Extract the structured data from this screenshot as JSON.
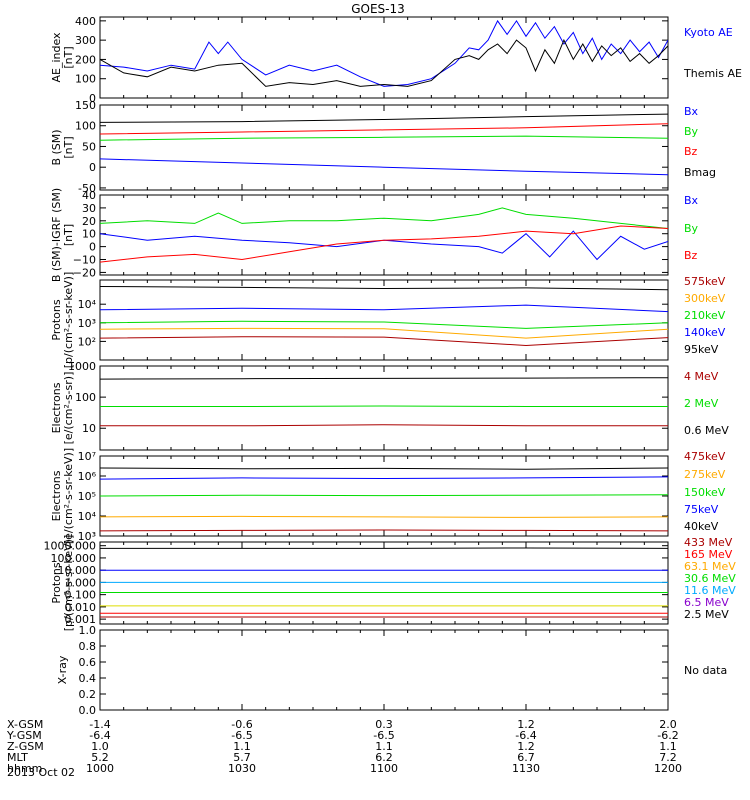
{
  "title": "GOES-13",
  "date_label": "2013 Oct 02",
  "colors": {
    "black": "#000000",
    "blue": "#0000ff",
    "red": "#ff0000",
    "green": "#00dd00",
    "orange": "#ffaa00",
    "darkred": "#aa0000",
    "cyan": "#00aaff",
    "yellow": "#dddd00",
    "purple": "#8800cc"
  },
  "chart_data": [
    {
      "id": "ae",
      "type": "line",
      "ylabel": "AE_index\n[nT]",
      "yscale": "linear",
      "ylim": [
        0,
        420
      ],
      "yticks": [
        "0",
        "100",
        "200",
        "300",
        "400"
      ],
      "ytick_values": [
        0,
        100,
        200,
        300,
        400
      ],
      "series": [
        {
          "name": "Kyoto AE",
          "color": "blue",
          "x": [
            1000,
            1005,
            1010,
            1015,
            1020,
            1023,
            1025,
            1027,
            1030,
            1035,
            1040,
            1045,
            1050,
            1055,
            1100,
            1105,
            1110,
            1115,
            1118,
            1120,
            1122,
            1124,
            1126,
            1128,
            1130,
            1132,
            1134,
            1136,
            1138,
            1140,
            1142,
            1144,
            1146,
            1148,
            1150,
            1152,
            1154,
            1156,
            1158,
            1200
          ],
          "y": [
            170,
            160,
            140,
            170,
            150,
            290,
            230,
            290,
            200,
            120,
            170,
            140,
            170,
            110,
            60,
            70,
            100,
            180,
            260,
            250,
            300,
            400,
            330,
            400,
            320,
            390,
            310,
            370,
            280,
            340,
            230,
            310,
            200,
            280,
            230,
            300,
            240,
            290,
            210,
            300
          ]
        },
        {
          "name": "Themis AE",
          "color": "black",
          "x": [
            1000,
            1005,
            1010,
            1015,
            1020,
            1025,
            1030,
            1035,
            1040,
            1045,
            1050,
            1055,
            1100,
            1105,
            1110,
            1115,
            1118,
            1120,
            1122,
            1124,
            1126,
            1128,
            1130,
            1132,
            1134,
            1136,
            1138,
            1140,
            1142,
            1144,
            1146,
            1148,
            1150,
            1152,
            1154,
            1156,
            1158,
            1200
          ],
          "y": [
            200,
            130,
            110,
            160,
            140,
            170,
            180,
            60,
            80,
            70,
            90,
            60,
            70,
            60,
            90,
            200,
            220,
            200,
            250,
            280,
            230,
            300,
            260,
            140,
            250,
            180,
            300,
            200,
            280,
            190,
            270,
            220,
            260,
            190,
            230,
            180,
            220,
            270
          ]
        }
      ],
      "legend": [
        "Kyoto AE",
        "Themis AE"
      ]
    },
    {
      "id": "bsm",
      "type": "line",
      "ylabel": "B (SM)\n[nT]",
      "yscale": "linear",
      "ylim": [
        -55,
        150
      ],
      "yticks": [
        "-50",
        "0",
        "50",
        "100",
        "150"
      ],
      "ytick_values": [
        -50,
        0,
        50,
        100,
        150
      ],
      "series": [
        {
          "name": "Bx",
          "color": "blue",
          "x": [
            1000,
            1030,
            1100,
            1130,
            1200
          ],
          "y": [
            20,
            10,
            0,
            -10,
            -18
          ]
        },
        {
          "name": "By",
          "color": "green",
          "x": [
            1000,
            1030,
            1100,
            1130,
            1200
          ],
          "y": [
            65,
            70,
            72,
            75,
            70
          ]
        },
        {
          "name": "Bz",
          "color": "red",
          "x": [
            1000,
            1030,
            1100,
            1130,
            1200
          ],
          "y": [
            80,
            85,
            90,
            95,
            105
          ]
        },
        {
          "name": "Bmag",
          "color": "black",
          "x": [
            1000,
            1030,
            1100,
            1130,
            1200
          ],
          "y": [
            108,
            110,
            115,
            122,
            128
          ]
        }
      ],
      "legend": [
        "Bx",
        "By",
        "Bz",
        "Bmag"
      ]
    },
    {
      "id": "bigrf",
      "type": "line",
      "ylabel": "B (SM)-IGRF (SM)\n[nT]",
      "yscale": "linear",
      "ylim": [
        -22,
        40
      ],
      "yticks": [
        "−20",
        "−10",
        "0",
        "10",
        "20",
        "30",
        "40"
      ],
      "ytick_values": [
        -20,
        -10,
        0,
        10,
        20,
        30,
        40
      ],
      "series": [
        {
          "name": "Bx",
          "color": "blue",
          "x": [
            1000,
            1010,
            1020,
            1030,
            1040,
            1050,
            1100,
            1110,
            1120,
            1125,
            1130,
            1135,
            1140,
            1145,
            1150,
            1155,
            1200
          ],
          "y": [
            10,
            5,
            8,
            5,
            3,
            0,
            5,
            2,
            0,
            -5,
            10,
            -8,
            12,
            -10,
            8,
            -2,
            4
          ]
        },
        {
          "name": "By",
          "color": "green",
          "x": [
            1000,
            1010,
            1020,
            1025,
            1030,
            1040,
            1050,
            1100,
            1110,
            1120,
            1125,
            1130,
            1140,
            1150,
            1200
          ],
          "y": [
            18,
            20,
            18,
            26,
            18,
            20,
            20,
            22,
            20,
            25,
            30,
            25,
            22,
            18,
            14
          ]
        },
        {
          "name": "Bz",
          "color": "red",
          "x": [
            1000,
            1010,
            1020,
            1030,
            1040,
            1050,
            1100,
            1110,
            1120,
            1130,
            1140,
            1150,
            1200
          ],
          "y": [
            -12,
            -8,
            -6,
            -10,
            -4,
            2,
            5,
            6,
            8,
            12,
            10,
            16,
            14
          ]
        }
      ],
      "legend": [
        "Bx",
        "By",
        "Bz"
      ]
    },
    {
      "id": "protons_kev",
      "type": "line",
      "ylabel": "Protons\n[p/(cm²-s-sr-keV)]",
      "yscale": "log",
      "ylim": [
        10,
        200000
      ],
      "yticks": [
        "10²",
        "10³",
        "10⁴"
      ],
      "ytick_values": [
        100,
        1000,
        10000
      ],
      "series": [
        {
          "name": "575keV",
          "color": "black",
          "x": [
            1000,
            1030,
            1100,
            1130,
            1200
          ],
          "y": [
            90000,
            80000,
            70000,
            75000,
            60000
          ]
        },
        {
          "name": "300keV",
          "color": "orange",
          "x": [
            1000,
            1030,
            1100,
            1130,
            1200
          ],
          "y": [
            450,
            500,
            480,
            150,
            450
          ]
        },
        {
          "name": "210keV",
          "color": "green",
          "x": [
            1000,
            1030,
            1100,
            1130,
            1200
          ],
          "y": [
            1000,
            1200,
            1100,
            500,
            1000
          ]
        },
        {
          "name": "140keV",
          "color": "blue",
          "x": [
            1000,
            1030,
            1100,
            1130,
            1200
          ],
          "y": [
            5000,
            6000,
            5000,
            9000,
            4000
          ]
        },
        {
          "name": "95keV",
          "color": "darkred",
          "x": [
            1000,
            1030,
            1100,
            1130,
            1200
          ],
          "y": [
            150,
            180,
            170,
            60,
            160
          ]
        }
      ],
      "legend": [
        "575keV",
        "300keV",
        "210keV",
        "140keV",
        "95keV"
      ]
    },
    {
      "id": "electrons_mev",
      "type": "line",
      "ylabel": "Electrons\n[e/(cm²-s-sr)]",
      "yscale": "log",
      "ylim": [
        2,
        1000
      ],
      "yticks": [
        "10",
        "100",
        "1000"
      ],
      "ytick_values": [
        10,
        100,
        1000
      ],
      "series": [
        {
          "name": "4 MeV",
          "color": "darkred",
          "x": [
            1000,
            1030,
            1100,
            1130,
            1200
          ],
          "y": [
            12,
            12,
            13,
            12,
            12
          ]
        },
        {
          "name": "2 MeV",
          "color": "green",
          "x": [
            1000,
            1030,
            1100,
            1130,
            1200
          ],
          "y": [
            50,
            50,
            52,
            50,
            50
          ]
        },
        {
          "name": "0.6 MeV",
          "color": "black",
          "x": [
            1000,
            1030,
            1100,
            1130,
            1200
          ],
          "y": [
            380,
            390,
            400,
            410,
            420
          ]
        }
      ],
      "legend": [
        "4 MeV",
        "2 MeV",
        "0.6 MeV"
      ]
    },
    {
      "id": "electrons_kev",
      "type": "line",
      "ylabel": "Electrons\n[e/(cm²-s-sr-keV)]",
      "yscale": "log",
      "ylim": [
        1000,
        10000000
      ],
      "yticks": [
        "10³",
        "10⁴",
        "10⁵",
        "10⁶",
        "10⁷"
      ],
      "ytick_values": [
        1000,
        10000,
        100000,
        1000000,
        10000000
      ],
      "series": [
        {
          "name": "475keV",
          "color": "darkred",
          "x": [
            1000,
            1030,
            1100,
            1130,
            1200
          ],
          "y": [
            1800,
            1900,
            2000,
            1900,
            1800
          ]
        },
        {
          "name": "275keV",
          "color": "orange",
          "x": [
            1000,
            1030,
            1100,
            1130,
            1200
          ],
          "y": [
            9000,
            9500,
            9000,
            8500,
            9000
          ]
        },
        {
          "name": "150keV",
          "color": "green",
          "x": [
            1000,
            1030,
            1100,
            1130,
            1200
          ],
          "y": [
            100000,
            110000,
            105000,
            110000,
            115000
          ]
        },
        {
          "name": "75keV",
          "color": "blue",
          "x": [
            1000,
            1030,
            1100,
            1130,
            1200
          ],
          "y": [
            700000,
            800000,
            750000,
            800000,
            900000
          ]
        },
        {
          "name": "40keV",
          "color": "black",
          "x": [
            1000,
            1030,
            1100,
            1130,
            1200
          ],
          "y": [
            2500000,
            2300000,
            2400000,
            2200000,
            2500000
          ]
        }
      ],
      "legend": [
        "475keV",
        "275keV",
        "150keV",
        "75keV",
        "40keV"
      ]
    },
    {
      "id": "protons_mev",
      "type": "line",
      "ylabel": "Protons\n[p/(cm²-s-sr-keV)]",
      "yscale": "log",
      "ylim": [
        0.0004,
        2000
      ],
      "yticks": [
        "0.001",
        "0.010",
        "0.100",
        "1.000",
        "10.000",
        "100.000",
        "1000.000"
      ],
      "ytick_values": [
        0.001,
        0.01,
        0.1,
        1,
        10,
        100,
        1000
      ],
      "series": [
        {
          "name": "433 MeV",
          "color": "darkred",
          "x": [
            1000,
            1030,
            1100,
            1130,
            1200
          ],
          "y": [
            0.0015,
            0.0015,
            0.0015,
            0.0015,
            0.0015
          ]
        },
        {
          "name": "165 MeV",
          "color": "red",
          "x": [
            1000,
            1030,
            1100,
            1130,
            1200
          ],
          "y": [
            0.003,
            0.003,
            0.003,
            0.003,
            0.003
          ]
        },
        {
          "name": "63.1 MeV",
          "color": "yellow",
          "x": [
            1000,
            1030,
            1100,
            1130,
            1200
          ],
          "y": [
            0.012,
            0.012,
            0.012,
            0.012,
            0.012
          ]
        },
        {
          "name": "30.6 MeV",
          "color": "green",
          "x": [
            1000,
            1030,
            1100,
            1130,
            1200
          ],
          "y": [
            0.15,
            0.15,
            0.15,
            0.15,
            0.15
          ]
        },
        {
          "name": "11.6 MeV",
          "color": "cyan",
          "x": [
            1000,
            1030,
            1100,
            1130,
            1200
          ],
          "y": [
            1.0,
            1.0,
            1.0,
            1.0,
            1.0
          ]
        },
        {
          "name": "6.5 MeV",
          "color": "blue",
          "x": [
            1000,
            1030,
            1100,
            1130,
            1200
          ],
          "y": [
            10,
            10,
            10,
            10,
            10
          ]
        },
        {
          "name": "2.5 MeV",
          "color": "black",
          "x": [
            1000,
            1030,
            1100,
            1130,
            1200
          ],
          "y": [
            600,
            600,
            600,
            650,
            600
          ]
        }
      ],
      "legend": [
        "433 MeV",
        "165 MeV",
        "63.1 MeV",
        "30.6 MeV",
        "11.6 MeV",
        "6.5 MeV",
        "2.5 MeV"
      ]
    },
    {
      "id": "xray",
      "type": "line",
      "ylabel": "X-ray",
      "yscale": "linear",
      "ylim": [
        0,
        1.0
      ],
      "yticks": [
        "0.0",
        "0.2",
        "0.4",
        "0.6",
        "0.8",
        "1.0"
      ],
      "ytick_values": [
        0,
        0.2,
        0.4,
        0.6,
        0.8,
        1.0
      ],
      "series": [],
      "legend": [],
      "note": "No data"
    }
  ],
  "legend_colors": {
    "ae": [
      "blue",
      "black"
    ],
    "bsm": [
      "blue",
      "green",
      "red",
      "black"
    ],
    "bigrf": [
      "blue",
      "green",
      "red"
    ],
    "protons_kev": [
      "darkred",
      "orange",
      "green",
      "blue",
      "black"
    ],
    "electrons_mev": [
      "darkred",
      "green",
      "black"
    ],
    "electrons_kev": [
      "darkred",
      "orange",
      "green",
      "blue",
      "black"
    ],
    "protons_mev": [
      "darkred",
      "red",
      "orange",
      "green",
      "cyan",
      "purple",
      "black"
    ]
  },
  "x_axis": {
    "range": [
      1000,
      1200
    ],
    "tick_hhmm": [
      1000,
      1030,
      1100,
      1130,
      1200
    ],
    "rows": [
      {
        "label": "X-GSM",
        "values": [
          "-1.4",
          "-0.6",
          "0.3",
          "1.2",
          "2.0"
        ]
      },
      {
        "label": "Y-GSM",
        "values": [
          "-6.4",
          "-6.5",
          "-6.5",
          "-6.4",
          "-6.2"
        ]
      },
      {
        "label": "Z-GSM",
        "values": [
          "1.0",
          "1.1",
          "1.1",
          "1.2",
          "1.1"
        ]
      },
      {
        "label": "MLT",
        "values": [
          "5.2",
          "5.7",
          "6.2",
          "6.7",
          "7.2"
        ]
      },
      {
        "label": "hhmm",
        "values": [
          "1000",
          "1030",
          "1100",
          "1130",
          "1200"
        ]
      }
    ]
  }
}
